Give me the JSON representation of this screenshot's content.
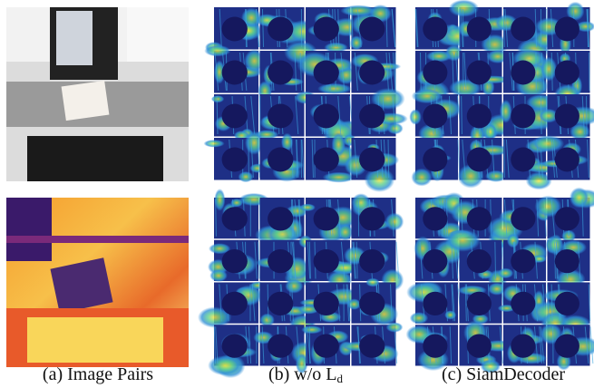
{
  "figure": {
    "captions": [
      {
        "text": "(a) Image Pairs"
      },
      {
        "text": "(b) w/o L",
        "sub": "d"
      },
      {
        "text": "(c) SiamDecoder"
      }
    ]
  }
}
